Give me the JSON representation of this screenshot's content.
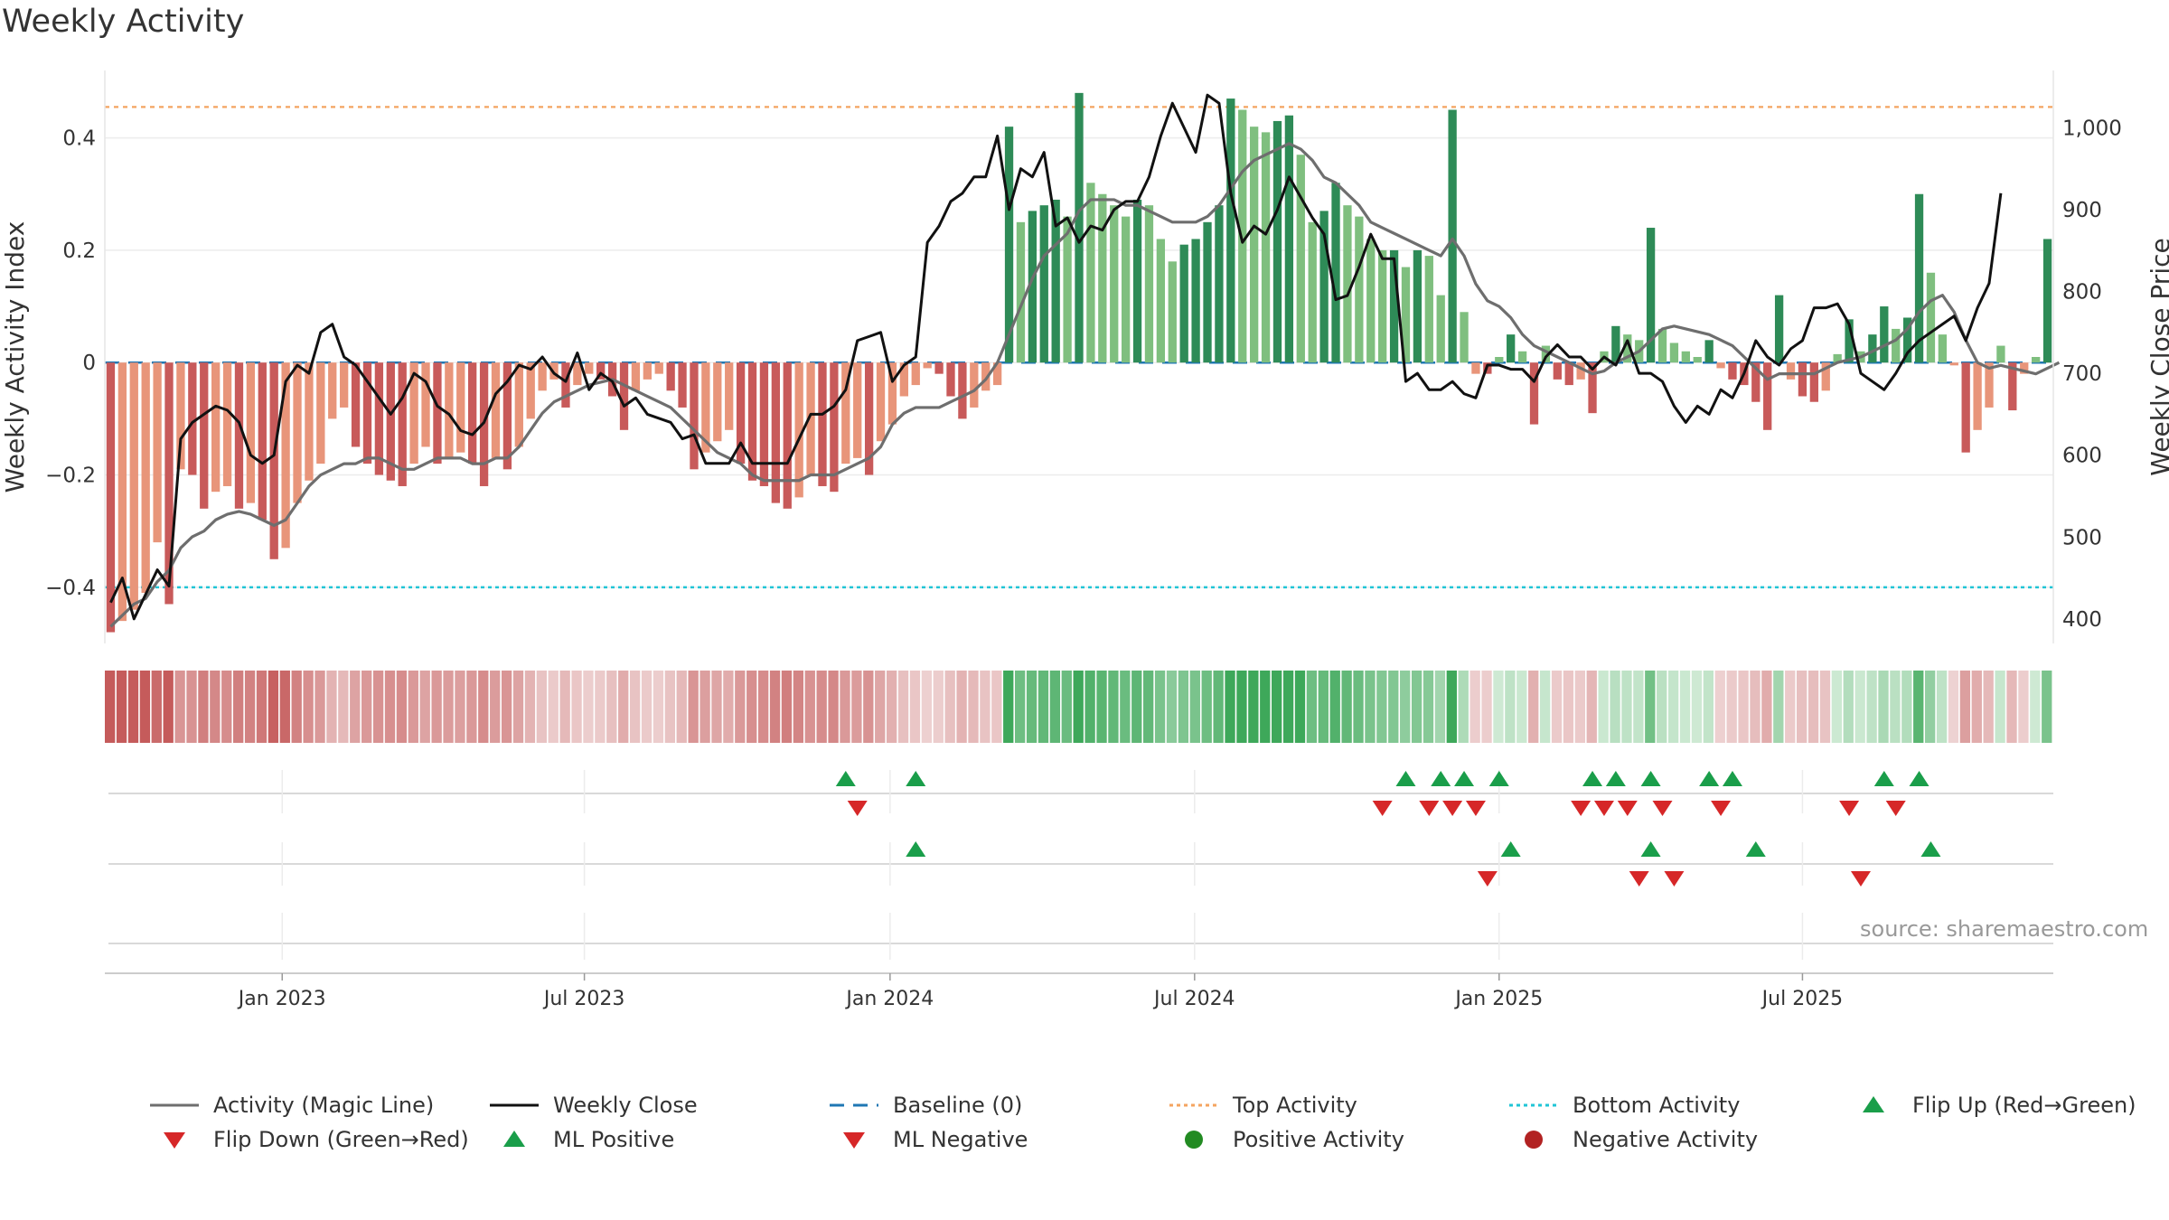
{
  "chart_data": {
    "type": "bar",
    "title": "Weekly Activity",
    "ylabel_left": "Weekly Activity Index",
    "ylabel_right": "Weekly Close Price",
    "ylim_left": [
      -0.5,
      0.52
    ],
    "ylim_right": [
      370,
      1070
    ],
    "yticks_left": [
      {
        "v": 0.4,
        "label": "0.4"
      },
      {
        "v": 0.2,
        "label": "0.2"
      },
      {
        "v": 0,
        "label": "0"
      },
      {
        "v": -0.2,
        "label": "−0.2"
      },
      {
        "v": -0.4,
        "label": "−0.4"
      }
    ],
    "yticks_right": [
      {
        "v": 1000,
        "label": "1,000"
      },
      {
        "v": 900,
        "label": "900"
      },
      {
        "v": 800,
        "label": "800"
      },
      {
        "v": 700,
        "label": "700"
      },
      {
        "v": 600,
        "label": "600"
      },
      {
        "v": 500,
        "label": "500"
      },
      {
        "v": 400,
        "label": "400"
      }
    ],
    "xticks": [
      {
        "i": 14.7,
        "label": "Jan 2023"
      },
      {
        "i": 40.6,
        "label": "Jul 2023"
      },
      {
        "i": 66.8,
        "label": "Jan 2024"
      },
      {
        "i": 92.9,
        "label": "Jul 2024"
      },
      {
        "i": 119.0,
        "label": "Jan 2025"
      },
      {
        "i": 145.0,
        "label": "Jul 2025"
      }
    ],
    "top_activity": 0.455,
    "bottom_activity": -0.4,
    "baseline": 0,
    "activity": [
      -0.48,
      -0.46,
      -0.44,
      -0.41,
      -0.32,
      -0.43,
      -0.19,
      -0.2,
      -0.26,
      -0.23,
      -0.22,
      -0.26,
      -0.25,
      -0.28,
      -0.35,
      -0.33,
      -0.25,
      -0.21,
      -0.18,
      -0.1,
      -0.08,
      -0.15,
      -0.18,
      -0.2,
      -0.21,
      -0.22,
      -0.18,
      -0.15,
      -0.18,
      -0.17,
      -0.16,
      -0.18,
      -0.22,
      -0.17,
      -0.19,
      -0.15,
      -0.1,
      -0.05,
      -0.03,
      -0.08,
      -0.04,
      -0.02,
      -0.03,
      -0.06,
      -0.12,
      -0.05,
      -0.03,
      -0.02,
      -0.05,
      -0.08,
      -0.19,
      -0.16,
      -0.14,
      -0.12,
      -0.18,
      -0.21,
      -0.22,
      -0.25,
      -0.26,
      -0.24,
      -0.2,
      -0.22,
      -0.23,
      -0.18,
      -0.17,
      -0.2,
      -0.14,
      -0.11,
      -0.06,
      -0.04,
      -0.01,
      -0.02,
      -0.06,
      -0.1,
      -0.08,
      -0.05,
      -0.04,
      0.42,
      0.25,
      0.27,
      0.28,
      0.29,
      0.26,
      0.48,
      0.32,
      0.3,
      0.28,
      0.26,
      0.29,
      0.28,
      0.22,
      0.18,
      0.21,
      0.22,
      0.25,
      0.28,
      0.47,
      0.45,
      0.42,
      0.41,
      0.43,
      0.44,
      0.37,
      0.25,
      0.27,
      0.32,
      0.28,
      0.26,
      0.22,
      0.2,
      0.2,
      0.17,
      0.2,
      0.19,
      0.12,
      0.45,
      0.09,
      -0.02,
      -0.02,
      0.01,
      0.05,
      0.02,
      -0.11,
      0.03,
      -0.03,
      -0.04,
      -0.03,
      -0.09,
      0.02,
      0.065,
      0.05,
      0.04,
      0.24,
      0.06,
      0.035,
      0.02,
      0.01,
      0.04,
      -0.01,
      -0.03,
      -0.04,
      -0.07,
      -0.12,
      0.12,
      -0.03,
      -0.06,
      -0.07,
      -0.05,
      0.015,
      0.077,
      0.02,
      0.05,
      0.1,
      0.06,
      0.08,
      0.3,
      0.16,
      0.05,
      -0.005,
      -0.16,
      -0.12,
      -0.08,
      0.03,
      -0.085,
      -0.02,
      0.01,
      0.22
    ],
    "magic_line": [
      -0.47,
      -0.45,
      -0.43,
      -0.42,
      -0.39,
      -0.37,
      -0.33,
      -0.31,
      -0.3,
      -0.28,
      -0.27,
      -0.265,
      -0.27,
      -0.28,
      -0.29,
      -0.28,
      -0.25,
      -0.22,
      -0.2,
      -0.19,
      -0.18,
      -0.18,
      -0.17,
      -0.17,
      -0.18,
      -0.19,
      -0.19,
      -0.18,
      -0.17,
      -0.17,
      -0.17,
      -0.18,
      -0.18,
      -0.17,
      -0.17,
      -0.15,
      -0.12,
      -0.09,
      -0.07,
      -0.06,
      -0.05,
      -0.04,
      -0.035,
      -0.03,
      -0.04,
      -0.05,
      -0.06,
      -0.07,
      -0.08,
      -0.1,
      -0.12,
      -0.14,
      -0.16,
      -0.17,
      -0.18,
      -0.2,
      -0.21,
      -0.21,
      -0.21,
      -0.21,
      -0.2,
      -0.2,
      -0.2,
      -0.19,
      -0.18,
      -0.17,
      -0.15,
      -0.11,
      -0.09,
      -0.08,
      -0.08,
      -0.08,
      -0.07,
      -0.06,
      -0.05,
      -0.03,
      0.0,
      0.05,
      0.1,
      0.15,
      0.19,
      0.21,
      0.23,
      0.27,
      0.29,
      0.29,
      0.29,
      0.28,
      0.28,
      0.27,
      0.26,
      0.25,
      0.25,
      0.25,
      0.26,
      0.28,
      0.31,
      0.34,
      0.36,
      0.37,
      0.38,
      0.39,
      0.38,
      0.36,
      0.33,
      0.32,
      0.3,
      0.28,
      0.25,
      0.24,
      0.23,
      0.22,
      0.21,
      0.2,
      0.19,
      0.22,
      0.19,
      0.14,
      0.11,
      0.1,
      0.08,
      0.05,
      0.03,
      0.02,
      0.01,
      0.0,
      -0.01,
      -0.02,
      -0.015,
      0.0,
      0.01,
      0.02,
      0.04,
      0.06,
      0.065,
      0.06,
      0.055,
      0.05,
      0.04,
      0.03,
      0.01,
      -0.01,
      -0.03,
      -0.02,
      -0.02,
      -0.02,
      -0.02,
      -0.01,
      0.0,
      0.005,
      0.01,
      0.02,
      0.03,
      0.04,
      0.06,
      0.09,
      0.11,
      0.12,
      0.09,
      0.04,
      0.0,
      -0.01,
      -0.005,
      -0.01,
      -0.015,
      -0.02,
      -0.01,
      0.0
    ],
    "weekly_close": [
      420,
      450,
      400,
      430,
      460,
      440,
      620,
      640,
      650,
      660,
      655,
      640,
      600,
      590,
      600,
      690,
      710,
      700,
      750,
      760,
      720,
      710,
      690,
      670,
      650,
      670,
      700,
      690,
      660,
      650,
      630,
      625,
      640,
      675,
      690,
      710,
      705,
      720,
      700,
      690,
      725,
      680,
      700,
      690,
      660,
      670,
      650,
      645,
      640,
      620,
      625,
      590,
      590,
      590,
      615,
      590,
      590,
      590,
      590,
      620,
      650,
      650,
      660,
      680,
      740,
      745,
      750,
      690,
      710,
      720,
      860,
      880,
      910,
      920,
      940,
      940,
      990,
      900,
      950,
      940,
      970,
      880,
      890,
      860,
      880,
      875,
      900,
      910,
      910,
      940,
      990,
      1030,
      1000,
      970,
      1040,
      1030,
      920,
      860,
      880,
      870,
      900,
      940,
      915,
      890,
      870,
      790,
      795,
      830,
      870,
      840,
      840,
      690,
      700,
      680,
      680,
      690,
      675,
      670,
      710,
      710,
      705,
      705,
      690,
      720,
      735,
      720,
      720,
      705,
      720,
      710,
      740,
      700,
      700,
      690,
      660,
      640,
      660,
      650,
      680,
      670,
      700,
      740,
      720,
      710,
      730,
      740,
      780,
      780,
      785,
      760,
      700,
      690,
      680,
      700,
      725,
      740,
      750,
      760,
      770,
      740,
      780,
      810,
      920
    ],
    "heat_strip": [
      -0.48,
      -0.46,
      -0.44,
      -0.41,
      -0.32,
      -0.43,
      -0.19,
      -0.2,
      -0.26,
      -0.23,
      -0.22,
      -0.26,
      -0.25,
      -0.28,
      -0.35,
      -0.33,
      -0.25,
      -0.21,
      -0.18,
      -0.1,
      -0.08,
      -0.15,
      -0.18,
      -0.2,
      -0.21,
      -0.22,
      -0.18,
      -0.15,
      -0.18,
      -0.17,
      -0.16,
      -0.18,
      -0.22,
      -0.17,
      -0.19,
      -0.15,
      -0.1,
      -0.05,
      -0.03,
      -0.08,
      -0.04,
      -0.02,
      -0.03,
      -0.06,
      -0.12,
      -0.05,
      -0.03,
      -0.02,
      -0.05,
      -0.08,
      -0.19,
      -0.16,
      -0.14,
      -0.12,
      -0.18,
      -0.21,
      -0.22,
      -0.25,
      -0.26,
      -0.24,
      -0.2,
      -0.22,
      -0.23,
      -0.18,
      -0.17,
      -0.2,
      -0.14,
      -0.11,
      -0.06,
      -0.04,
      -0.01,
      -0.02,
      -0.06,
      -0.1,
      -0.08,
      -0.05,
      -0.04,
      0.42,
      0.25,
      0.27,
      0.28,
      0.29,
      0.26,
      0.48,
      0.32,
      0.3,
      0.28,
      0.26,
      0.29,
      0.28,
      0.22,
      0.18,
      0.21,
      0.22,
      0.25,
      0.28,
      0.47,
      0.45,
      0.42,
      0.41,
      0.43,
      0.44,
      0.37,
      0.25,
      0.27,
      0.32,
      0.28,
      0.26,
      0.22,
      0.2,
      0.2,
      0.17,
      0.2,
      0.19,
      0.12,
      0.45,
      0.09,
      -0.02,
      -0.02,
      0.01,
      0.05,
      0.02,
      -0.11,
      0.03,
      -0.03,
      -0.04,
      -0.03,
      -0.09,
      0.02,
      0.065,
      0.05,
      0.04,
      0.24,
      0.06,
      0.035,
      0.02,
      0.01,
      0.04,
      -0.01,
      -0.03,
      -0.04,
      -0.07,
      -0.12,
      0.12,
      -0.03,
      -0.06,
      -0.07,
      -0.05,
      0.015,
      0.077,
      0.02,
      0.05,
      0.1,
      0.06,
      0.08,
      0.3,
      0.16,
      0.05,
      -0.005,
      -0.16,
      -0.12,
      -0.08,
      0.03,
      -0.085,
      -0.02,
      0.01,
      0.22
    ],
    "flip_up": [
      63,
      69,
      111,
      114,
      116,
      119,
      127,
      129,
      132,
      137,
      139,
      152,
      155
    ],
    "flip_down": [
      64,
      109,
      113,
      115,
      117,
      126,
      128,
      130,
      133,
      138,
      149,
      153
    ],
    "ml_positive": [
      69,
      120,
      132,
      141,
      156
    ],
    "ml_negative": [
      118,
      131,
      134,
      150
    ],
    "positive_activity": [],
    "negative_activity": []
  },
  "source_text": "source: sharemaestro.com",
  "legend": {
    "activity": "Activity (Magic Line)",
    "weekly_close": "Weekly Close",
    "baseline": "Baseline (0)",
    "top_activity": "Top Activity",
    "bottom_activity": "Bottom Activity",
    "flip_up": "Flip Up (Red→Green)",
    "flip_down": "Flip Down (Green→Red)",
    "ml_positive": "ML Positive",
    "ml_negative": "ML Negative",
    "positive_activity": "Positive Activity",
    "negative_activity": "Negative Activity"
  },
  "colors": {
    "pos_strong": "#2e8b57",
    "pos_light": "#7fbf7f",
    "neg_strong": "#c85a5a",
    "neg_light": "#e8957a",
    "magic_line": "#6e6e6e",
    "close_line": "#111111",
    "baseline": "#1f77b4",
    "top": "#f4a460",
    "bottom": "#20c5d6",
    "up_marker": "#1a9e4a",
    "down_marker": "#d62728",
    "pos_dot": "#228b22",
    "neg_dot": "#b22222"
  }
}
